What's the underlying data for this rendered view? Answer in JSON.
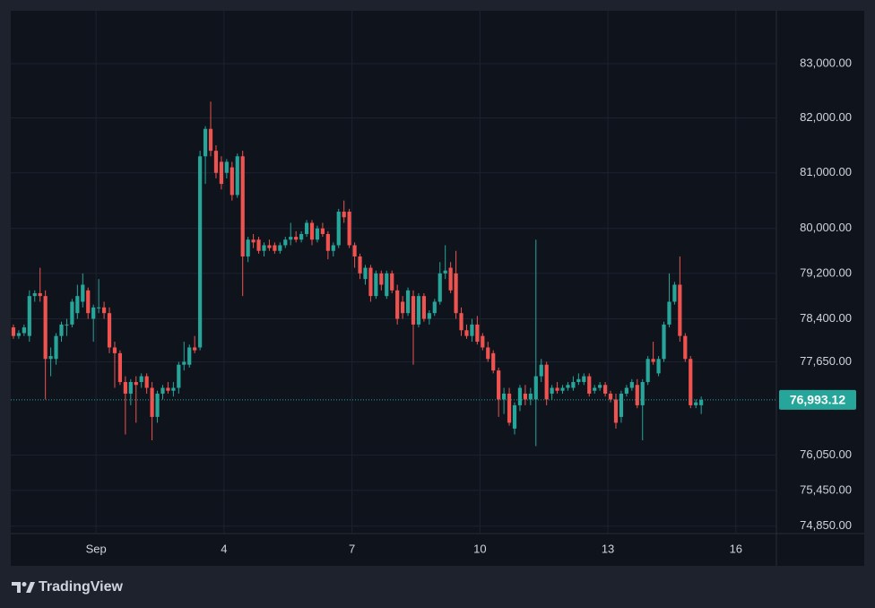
{
  "chart_data": {
    "type": "candlestick",
    "brand": "TradingView",
    "log_scale": true,
    "grid": true,
    "up_color": "#26a69a",
    "down_color": "#ef5350",
    "xlim": [
      -1,
      16.95
    ],
    "xticks": [
      {
        "value": 1,
        "label": "Sep"
      },
      4,
      7,
      10,
      13,
      16
    ],
    "ylim": [
      74726,
      83988
    ],
    "yticks": [
      {
        "value": 74850,
        "label": "74,850.00"
      },
      {
        "value": 75450,
        "label": "75,450.00"
      },
      {
        "value": 76050,
        "label": "76,050.00"
      },
      {
        "value": 77650,
        "label": "77,650.00"
      },
      {
        "value": 78400,
        "label": "78,400.00"
      },
      {
        "value": 79200,
        "label": "79,200.00"
      },
      {
        "value": 80000,
        "label": "80,000.00"
      },
      {
        "value": 81000,
        "label": "81,000.00"
      },
      {
        "value": 82000,
        "label": "82,000.00"
      },
      {
        "value": 83000,
        "label": "83,000.00"
      }
    ],
    "last_price": {
      "value": 76993.12,
      "label": "76,993.12"
    },
    "x": [
      -0.9375,
      -0.8125,
      -0.6875,
      -0.5625,
      -0.4375,
      -0.3125,
      -0.1875,
      -0.0625,
      0.0625,
      0.1875,
      0.3125,
      0.4375,
      0.5625,
      0.6875,
      0.8125,
      0.9375,
      1.0625,
      1.1875,
      1.3125,
      1.4375,
      1.5625,
      1.6875,
      1.8125,
      1.9375,
      2.0625,
      2.1875,
      2.3125,
      2.4375,
      2.5625,
      2.6875,
      2.8125,
      2.9375,
      3.0625,
      3.1875,
      3.3125,
      3.4375,
      3.5625,
      3.6875,
      3.8125,
      3.9375,
      4.0625,
      4.1875,
      4.3125,
      4.4375,
      4.5625,
      4.6875,
      4.8125,
      4.9375,
      5.0625,
      5.1875,
      5.3125,
      5.4375,
      5.5625,
      5.6875,
      5.8125,
      5.9375,
      6.0625,
      6.1875,
      6.3125,
      6.4375,
      6.5625,
      6.6875,
      6.8125,
      6.9375,
      7.0625,
      7.1875,
      7.3125,
      7.4375,
      7.5625,
      7.6875,
      7.8125,
      7.9375,
      8.0625,
      8.1875,
      8.3125,
      8.4375,
      8.5625,
      8.6875,
      8.8125,
      8.9375,
      9.0625,
      9.1875,
      9.3125,
      9.4375,
      9.5625,
      9.6875,
      9.8125,
      9.9375,
      10.0625,
      10.1875,
      10.3125,
      10.4375,
      10.5625,
      10.6875,
      10.8125,
      10.9375,
      11.0625,
      11.1875,
      11.3125,
      11.4375,
      11.5625,
      11.6875,
      11.8125,
      11.9375,
      12.0625,
      12.1875,
      12.3125,
      12.4375,
      12.5625,
      12.6875,
      12.8125,
      12.9375,
      13.0625,
      13.1875,
      13.3125,
      13.4375,
      13.5625,
      13.6875,
      13.8125,
      13.9375,
      14.0625,
      14.1875,
      14.3125,
      14.4375,
      14.5625,
      14.6875,
      14.8125,
      14.9375,
      15.0625,
      15.1875
    ],
    "open": [
      78250,
      78100,
      78150,
      78100,
      78800,
      78850,
      78800,
      77700,
      77700,
      78100,
      78300,
      78300,
      78500,
      78700,
      78900,
      78400,
      78600,
      78600,
      78500,
      77900,
      77800,
      77300,
      77100,
      77300,
      77300,
      77400,
      77200,
      76700,
      77100,
      77200,
      77150,
      77200,
      77600,
      77600,
      77900,
      77900,
      81300,
      81800,
      81400,
      81200,
      81000,
      81100,
      80600,
      81300,
      79500,
      79800,
      79800,
      79600,
      79700,
      79700,
      79600,
      79700,
      79800,
      79850,
      79800,
      79900,
      80100,
      79800,
      80000,
      79900,
      79600,
      79700,
      80300,
      80300,
      79700,
      79500,
      79100,
      79300,
      78800,
      79200,
      78800,
      79200,
      78900,
      78700,
      78500,
      78800,
      78300,
      78800,
      78400,
      78500,
      78700,
      79200,
      79300,
      79200,
      78500,
      78200,
      78100,
      78300,
      78100,
      77900,
      77800,
      77500,
      77000,
      77100,
      76500,
      76900,
      77100,
      77000,
      77000,
      77400,
      77600,
      77100,
      77200,
      77150,
      77200,
      77200,
      77300,
      77300,
      77400,
      77150,
      77200,
      77250,
      77100,
      77000,
      76700,
      77100,
      77200,
      77250,
      76900,
      77300,
      77700,
      77450,
      77700,
      78300,
      78700,
      79000,
      78100,
      77700,
      76900,
      76900
    ],
    "high": [
      78300,
      78200,
      78300,
      78900,
      78900,
      79300,
      78900,
      77900,
      78150,
      78350,
      78400,
      78750,
      79000,
      79200,
      78950,
      78650,
      79100,
      78700,
      78600,
      78000,
      77850,
      77400,
      77350,
      77400,
      77450,
      77450,
      77300,
      77150,
      77250,
      77300,
      77300,
      77650,
      78000,
      77950,
      78100,
      81400,
      81850,
      82300,
      81500,
      81300,
      81250,
      81200,
      81350,
      81400,
      79850,
      79900,
      79850,
      79750,
      79800,
      79750,
      79750,
      79850,
      80100,
      79950,
      79950,
      80150,
      80150,
      80050,
      80100,
      79950,
      79750,
      80350,
      80500,
      80350,
      79750,
      79550,
      79350,
      79350,
      79250,
      79250,
      79250,
      79250,
      79000,
      78800,
      78950,
      78900,
      78850,
      78850,
      78550,
      78750,
      79400,
      79700,
      79400,
      79600,
      78600,
      78300,
      78400,
      78450,
      78150,
      78000,
      77850,
      77550,
      77200,
      77200,
      76950,
      77250,
      77250,
      77200,
      79800,
      77700,
      77650,
      77250,
      77300,
      77250,
      77300,
      77400,
      77450,
      77450,
      77450,
      77250,
      77300,
      77300,
      77150,
      77100,
      77150,
      77250,
      77350,
      77350,
      77350,
      77750,
      78000,
      77750,
      78350,
      79200,
      79050,
      79500,
      78150,
      77750,
      77000,
      77050
    ],
    "low": [
      78050,
      78050,
      78100,
      78000,
      78700,
      78700,
      77000,
      77400,
      77600,
      78000,
      78100,
      78250,
      78400,
      78600,
      78400,
      78000,
      78500,
      78400,
      77800,
      77200,
      77250,
      76400,
      76900,
      76600,
      77200,
      77100,
      76300,
      76600,
      77000,
      77100,
      77050,
      77100,
      77500,
      77550,
      77800,
      77850,
      80800,
      81300,
      80900,
      80700,
      80900,
      80500,
      80550,
      78800,
      79400,
      79650,
      79550,
      79500,
      79600,
      79550,
      79550,
      79650,
      79700,
      79750,
      79750,
      79850,
      79700,
      79750,
      79850,
      79450,
      79500,
      79650,
      80100,
      79650,
      79300,
      79100,
      79000,
      78700,
      78750,
      78900,
      78750,
      78850,
      78300,
      78400,
      78450,
      77600,
      78250,
      78350,
      78300,
      78450,
      78650,
      79100,
      78850,
      78400,
      78100,
      78050,
      78000,
      77950,
      77850,
      77650,
      77450,
      76700,
      76750,
      76550,
      76400,
      76800,
      76900,
      76900,
      76200,
      77300,
      76900,
      77000,
      77100,
      77100,
      77150,
      77150,
      77250,
      77250,
      77050,
      77100,
      77150,
      77050,
      76950,
      76500,
      76600,
      77050,
      77150,
      76850,
      76300,
      77250,
      77600,
      77400,
      77650,
      78250,
      78650,
      78000,
      77650,
      76850,
      76850,
      76750
    ],
    "close": [
      78100,
      78150,
      78250,
      78800,
      78850,
      78800,
      77700,
      77750,
      78100,
      78300,
      78300,
      78700,
      78800,
      79000,
      78500,
      78600,
      78600,
      78500,
      77900,
      77800,
      77300,
      77100,
      77300,
      77250,
      77400,
      77200,
      76700,
      77100,
      77200,
      77150,
      77200,
      77600,
      77650,
      77900,
      77850,
      81300,
      81800,
      81400,
      81000,
      80800,
      81200,
      80600,
      81300,
      79500,
      79800,
      79750,
      79600,
      79700,
      79650,
      79600,
      79700,
      79800,
      79850,
      79800,
      79900,
      80100,
      79800,
      80000,
      79900,
      79600,
      79700,
      80300,
      80200,
      79700,
      79500,
      79200,
      79300,
      78800,
      79200,
      79000,
      79200,
      78900,
      78400,
      78500,
      78900,
      78300,
      78800,
      78400,
      78500,
      78700,
      79200,
      79250,
      78900,
      78500,
      78200,
      78100,
      78300,
      78000,
      77900,
      77700,
      77500,
      77000,
      77100,
      76600,
      76900,
      77200,
      77000,
      77100,
      77400,
      77600,
      77000,
      77200,
      77150,
      77200,
      77250,
      77300,
      77350,
      77400,
      77100,
      77200,
      77250,
      77100,
      77000,
      76600,
      77100,
      77200,
      77300,
      76900,
      77300,
      77700,
      77650,
      77700,
      78300,
      78700,
      79000,
      78100,
      77700,
      76900,
      76950,
      76993.12
    ]
  }
}
